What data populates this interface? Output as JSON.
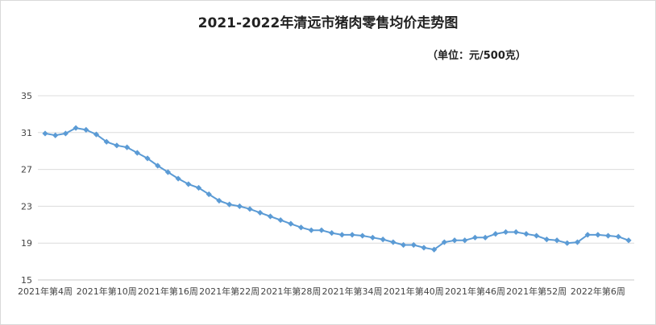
{
  "chart_data": {
    "type": "line",
    "title": "2021-2022年清远市猪肉零售均价走势图",
    "subtitle": "（单位：元/500克）",
    "xlabel": "",
    "ylabel": "",
    "ylim": [
      15,
      35
    ],
    "yticks": [
      15,
      19,
      23,
      27,
      31,
      35
    ],
    "grid": true,
    "legend": "none",
    "series_color": "#5b9bd5",
    "x": [
      "2021年第4周",
      "2021年第5周",
      "2021年第6周",
      "2021年第7周",
      "2021年第8周",
      "2021年第9周",
      "2021年第10周",
      "2021年第11周",
      "2021年第12周",
      "2021年第13周",
      "2021年第14周",
      "2021年第15周",
      "2021年第16周",
      "2021年第17周",
      "2021年第18周",
      "2021年第19周",
      "2021年第20周",
      "2021年第21周",
      "2021年第22周",
      "2021年第23周",
      "2021年第24周",
      "2021年第25周",
      "2021年第26周",
      "2021年第27周",
      "2021年第28周",
      "2021年第29周",
      "2021年第30周",
      "2021年第31周",
      "2021年第32周",
      "2021年第33周",
      "2021年第34周",
      "2021年第35周",
      "2021年第36周",
      "2021年第37周",
      "2021年第38周",
      "2021年第39周",
      "2021年第40周",
      "2021年第41周",
      "2021年第42周",
      "2021年第43周",
      "2021年第44周",
      "2021年第45周",
      "2021年第46周",
      "2021年第47周",
      "2021年第48周",
      "2021年第49周",
      "2021年第50周",
      "2021年第51周",
      "2021年第52周",
      "2022年第1周",
      "2022年第2周",
      "2022年第3周",
      "2022年第4周",
      "2022年第5周",
      "2022年第6周",
      "2022年第7周",
      "2022年第8周",
      "2022年第9周"
    ],
    "x_tick_labels": [
      "2021年第4周",
      "2021年第10周",
      "2021年第16周",
      "2021年第22周",
      "2021年第28周",
      "2021年第34周",
      "2021年第40周",
      "2021年第46周",
      "2021年第52周",
      "2022年第6周"
    ],
    "values": [
      30.9,
      30.7,
      30.9,
      31.5,
      31.3,
      30.8,
      30.0,
      29.6,
      29.4,
      28.8,
      28.2,
      27.4,
      26.7,
      26.0,
      25.4,
      25.0,
      24.3,
      23.6,
      23.2,
      23.0,
      22.7,
      22.3,
      21.9,
      21.5,
      21.1,
      20.7,
      20.4,
      20.4,
      20.1,
      19.9,
      19.9,
      19.8,
      19.6,
      19.4,
      19.1,
      18.8,
      18.8,
      18.5,
      18.3,
      19.1,
      19.3,
      19.3,
      19.6,
      19.6,
      20.0,
      20.2,
      20.2,
      20.0,
      19.8,
      19.4,
      19.3,
      19.0,
      19.1,
      19.9,
      19.9,
      19.8,
      19.7,
      19.3
    ]
  }
}
